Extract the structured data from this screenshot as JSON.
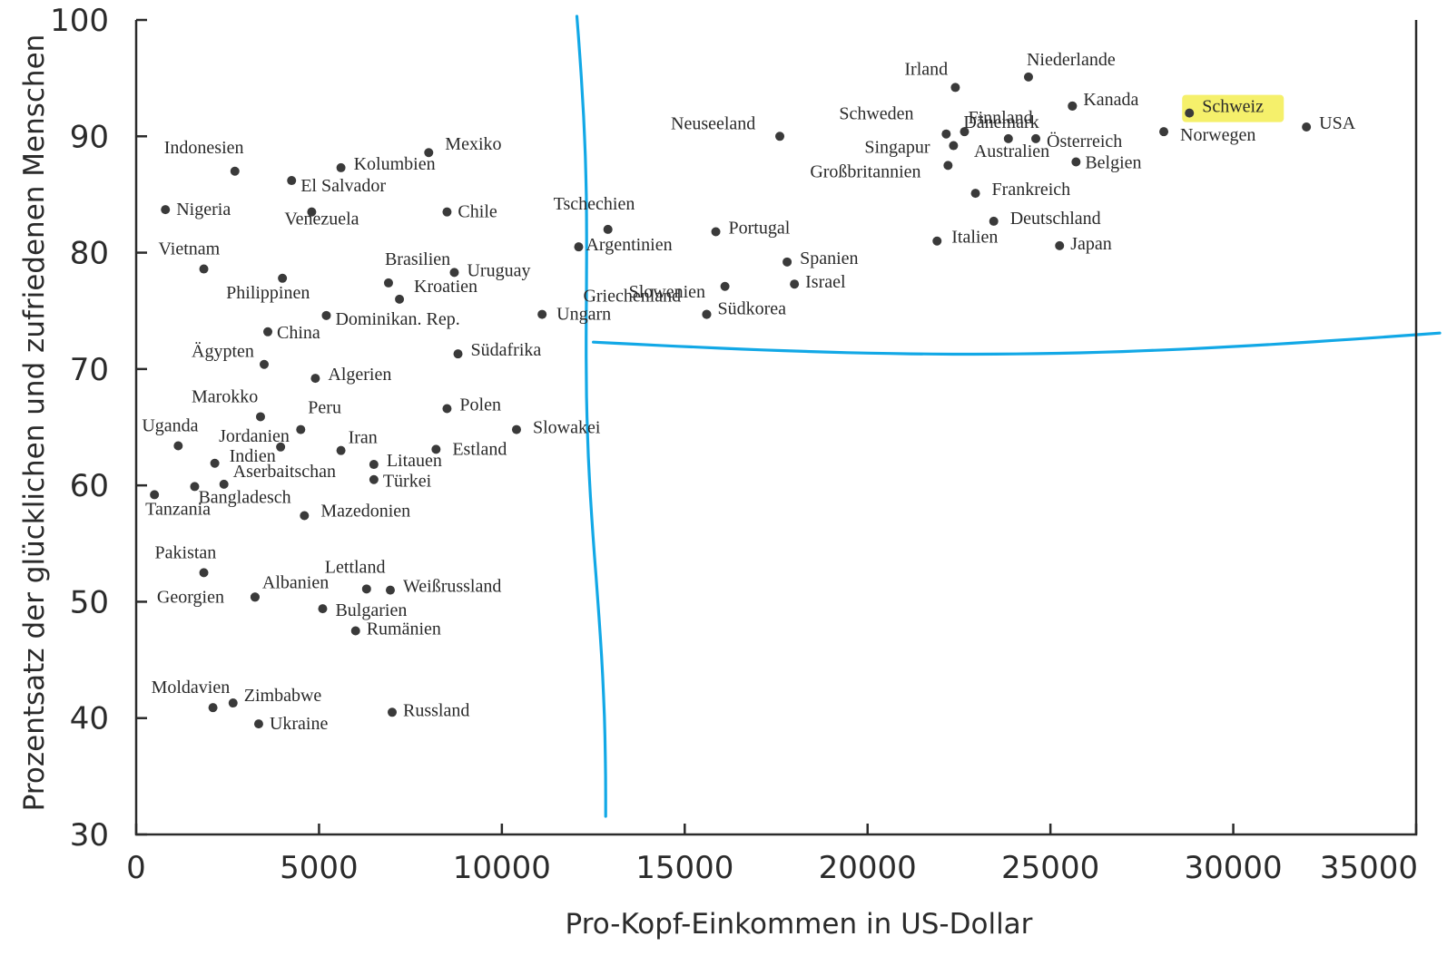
{
  "chart_data": {
    "type": "scatter",
    "xlabel": "Pro-Kopf-Einkommen in US-Dollar",
    "ylabel": "Prozentsatz der glücklichen und zufriedenen Menschen",
    "xlim": [
      0,
      35000
    ],
    "ylim": [
      30,
      100
    ],
    "x_ticks": [
      0,
      5000,
      10000,
      15000,
      20000,
      25000,
      30000,
      35000
    ],
    "x_tick_labels": [
      "0",
      "5000",
      "10000",
      "15000",
      "20000",
      "25000",
      "30000",
      "35000"
    ],
    "y_ticks": [
      30,
      40,
      50,
      60,
      70,
      80,
      90,
      100
    ],
    "y_tick_labels": [
      "30",
      "40",
      "50",
      "60",
      "70",
      "80",
      "90",
      "100"
    ],
    "grid": false,
    "highlight_color": "#f5f06b",
    "annotation_color": "#12a8e6",
    "annotations": [
      {
        "type": "vertical_line",
        "x": 12300
      },
      {
        "type": "horizontal_line",
        "y": 72
      }
    ],
    "points": [
      {
        "label": "Indonesien",
        "x": 2700,
        "y": 87.0
      },
      {
        "label": "Nigeria",
        "x": 800,
        "y": 83.7
      },
      {
        "label": "Vietnam",
        "x": 1850,
        "y": 78.6
      },
      {
        "label": "Mexiko",
        "x": 8000,
        "y": 88.6
      },
      {
        "label": "Kolumbien",
        "x": 5600,
        "y": 87.3
      },
      {
        "label": "El Salvador",
        "x": 4250,
        "y": 86.2
      },
      {
        "label": "Venezuela",
        "x": 4800,
        "y": 83.5
      },
      {
        "label": "Chile",
        "x": 8500,
        "y": 83.5
      },
      {
        "label": "Tschechien",
        "x": 12900,
        "y": 82.0
      },
      {
        "label": "Argentinien",
        "x": 12100,
        "y": 80.5
      },
      {
        "label": "Brasilien",
        "x": 6900,
        "y": 77.4
      },
      {
        "label": "Uruguay",
        "x": 8700,
        "y": 78.3
      },
      {
        "label": "Philippinen",
        "x": 4000,
        "y": 77.8
      },
      {
        "label": "Kroatien",
        "x": 7200,
        "y": 76.0
      },
      {
        "label": "Dominikan. Rep.",
        "x": 5200,
        "y": 74.6
      },
      {
        "label": "China",
        "x": 3600,
        "y": 73.2
      },
      {
        "label": "Ungarn",
        "x": 11100,
        "y": 74.7
      },
      {
        "label": "Südafrika",
        "x": 8800,
        "y": 71.3
      },
      {
        "label": "Ägypten",
        "x": 3500,
        "y": 70.4
      },
      {
        "label": "Algerien",
        "x": 4900,
        "y": 69.2
      },
      {
        "label": "Marokko",
        "x": 3400,
        "y": 65.9
      },
      {
        "label": "Polen",
        "x": 8500,
        "y": 66.6
      },
      {
        "label": "Peru",
        "x": 4500,
        "y": 64.8
      },
      {
        "label": "Uganda",
        "x": 1150,
        "y": 63.4
      },
      {
        "label": "Jordanien",
        "x": 3950,
        "y": 63.3
      },
      {
        "label": "Iran",
        "x": 5600,
        "y": 63.0
      },
      {
        "label": "Slowakei",
        "x": 10400,
        "y": 64.8
      },
      {
        "label": "Estland",
        "x": 8200,
        "y": 63.1
      },
      {
        "label": "Indien",
        "x": 2150,
        "y": 61.9
      },
      {
        "label": "Litauen",
        "x": 6500,
        "y": 61.8
      },
      {
        "label": "Aserbaitschan",
        "x": 2400,
        "y": 60.1
      },
      {
        "label": "Türkei",
        "x": 6500,
        "y": 60.5
      },
      {
        "label": "Bangladesch",
        "x": 1600,
        "y": 59.9
      },
      {
        "label": "Tanzania",
        "x": 500,
        "y": 59.2
      },
      {
        "label": "Mazedonien",
        "x": 4600,
        "y": 57.4
      },
      {
        "label": "Pakistan",
        "x": 1850,
        "y": 52.5
      },
      {
        "label": "Lettland",
        "x": 6300,
        "y": 51.1
      },
      {
        "label": "Weißrussland",
        "x": 6950,
        "y": 51.0
      },
      {
        "label": "Albanien",
        "x": 3250,
        "y": 50.4
      },
      {
        "label": "Georgien",
        "x": 3250,
        "y": 50.4
      },
      {
        "label": "Bulgarien",
        "x": 5100,
        "y": 49.4
      },
      {
        "label": "Rumänien",
        "x": 6000,
        "y": 47.5
      },
      {
        "label": "Moldavien",
        "x": 2100,
        "y": 40.9
      },
      {
        "label": "Zimbabwe",
        "x": 2650,
        "y": 41.3
      },
      {
        "label": "Ukraine",
        "x": 3350,
        "y": 39.5
      },
      {
        "label": "Russland",
        "x": 7000,
        "y": 40.5
      },
      {
        "label": "Portugal",
        "x": 15850,
        "y": 81.8
      },
      {
        "label": "Spanien",
        "x": 17800,
        "y": 79.2
      },
      {
        "label": "Israel",
        "x": 18000,
        "y": 77.3
      },
      {
        "label": "Slowenien",
        "x": 16100,
        "y": 77.1
      },
      {
        "label": "Griechenland",
        "x": 15600,
        "y": 74.7
      },
      {
        "label": "Südkorea",
        "x": 15600,
        "y": 74.7
      },
      {
        "label": "Neuseeland",
        "x": 17600,
        "y": 90.0
      },
      {
        "label": "Irland",
        "x": 22400,
        "y": 94.2
      },
      {
        "label": "Niederlande",
        "x": 24400,
        "y": 95.1
      },
      {
        "label": "Dänemark",
        "x": 25600,
        "y": 92.6
      },
      {
        "label": "Kanada",
        "x": 25600,
        "y": 92.6
      },
      {
        "label": "Schweden",
        "x": 22150,
        "y": 90.2
      },
      {
        "label": "Finnland",
        "x": 22650,
        "y": 90.4
      },
      {
        "label": "Singapur",
        "x": 22350,
        "y": 89.2
      },
      {
        "label": "Australien",
        "x": 23850,
        "y": 89.8
      },
      {
        "label": "Österreich",
        "x": 24600,
        "y": 89.8
      },
      {
        "label": "Großbritannien",
        "x": 22200,
        "y": 87.5
      },
      {
        "label": "Belgien",
        "x": 25700,
        "y": 87.8
      },
      {
        "label": "Frankreich",
        "x": 22950,
        "y": 85.1
      },
      {
        "label": "Deutschland",
        "x": 23450,
        "y": 82.7
      },
      {
        "label": "Italien",
        "x": 21900,
        "y": 81.0
      },
      {
        "label": "Japan",
        "x": 25250,
        "y": 80.6
      },
      {
        "label": "Schweiz",
        "x": 28800,
        "y": 92.0
      },
      {
        "label": "Norwegen",
        "x": 28100,
        "y": 90.4
      },
      {
        "label": "USA",
        "x": 32000,
        "y": 90.8
      }
    ]
  }
}
